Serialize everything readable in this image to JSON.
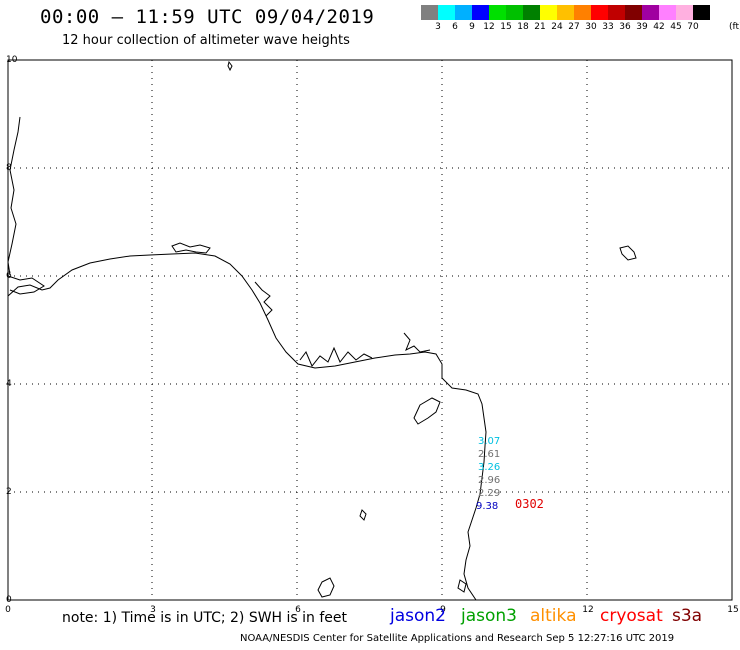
{
  "title": "00:00 – 11:59 UTC 09/04/2019",
  "subtitle": "12 hour collection of altimeter wave heights",
  "color_scale": {
    "colors": [
      "#808080",
      "#00ffff",
      "#00b0ff",
      "#0000ff",
      "#00e000",
      "#00c000",
      "#008000",
      "#ffff00",
      "#ffc000",
      "#ff8000",
      "#ff0000",
      "#c00000",
      "#800000",
      "#a000a0",
      "#ff80ff",
      "#ffb0e0",
      "#000000"
    ],
    "labels": [
      "3",
      "6",
      "9",
      "12",
      "15",
      "18",
      "21",
      "24",
      "27",
      "30",
      "33",
      "36",
      "39",
      "42",
      "45",
      "70"
    ],
    "unit": "(ft)"
  },
  "axes": {
    "x_ticks": [
      "0",
      "3",
      "6",
      "9",
      "12",
      "15"
    ],
    "y_ticks": [
      "10",
      "8",
      "6",
      "4",
      "2",
      "0"
    ]
  },
  "wave_heights": [
    {
      "text": "3.07",
      "color": "#00c0e0"
    },
    {
      "text": "2.61",
      "color": "#707070"
    },
    {
      "text": "3.26",
      "color": "#00c0e0"
    },
    {
      "text": "2.96",
      "color": "#707070"
    },
    {
      "text": "2.29",
      "color": "#707070"
    },
    {
      "text": "9.38",
      "color": "#0000c0"
    }
  ],
  "time_label": {
    "text": "0302",
    "color": "#e00000"
  },
  "note": "note: 1) Time is in UTC; 2) SWH is in feet",
  "missions": [
    {
      "text": "jason2",
      "color": "#0000e0"
    },
    {
      "text": "jason3",
      "color": "#00a000"
    },
    {
      "text": "altika",
      "color": "#ff9000"
    },
    {
      "text": "cryosat",
      "color": "#ff0000"
    },
    {
      "text": "s3a",
      "color": "#800000"
    }
  ],
  "credit": "NOAA/NESDIS Center for Satellite Applications and Research   Sep  5 12:27:16 UTC 2019"
}
